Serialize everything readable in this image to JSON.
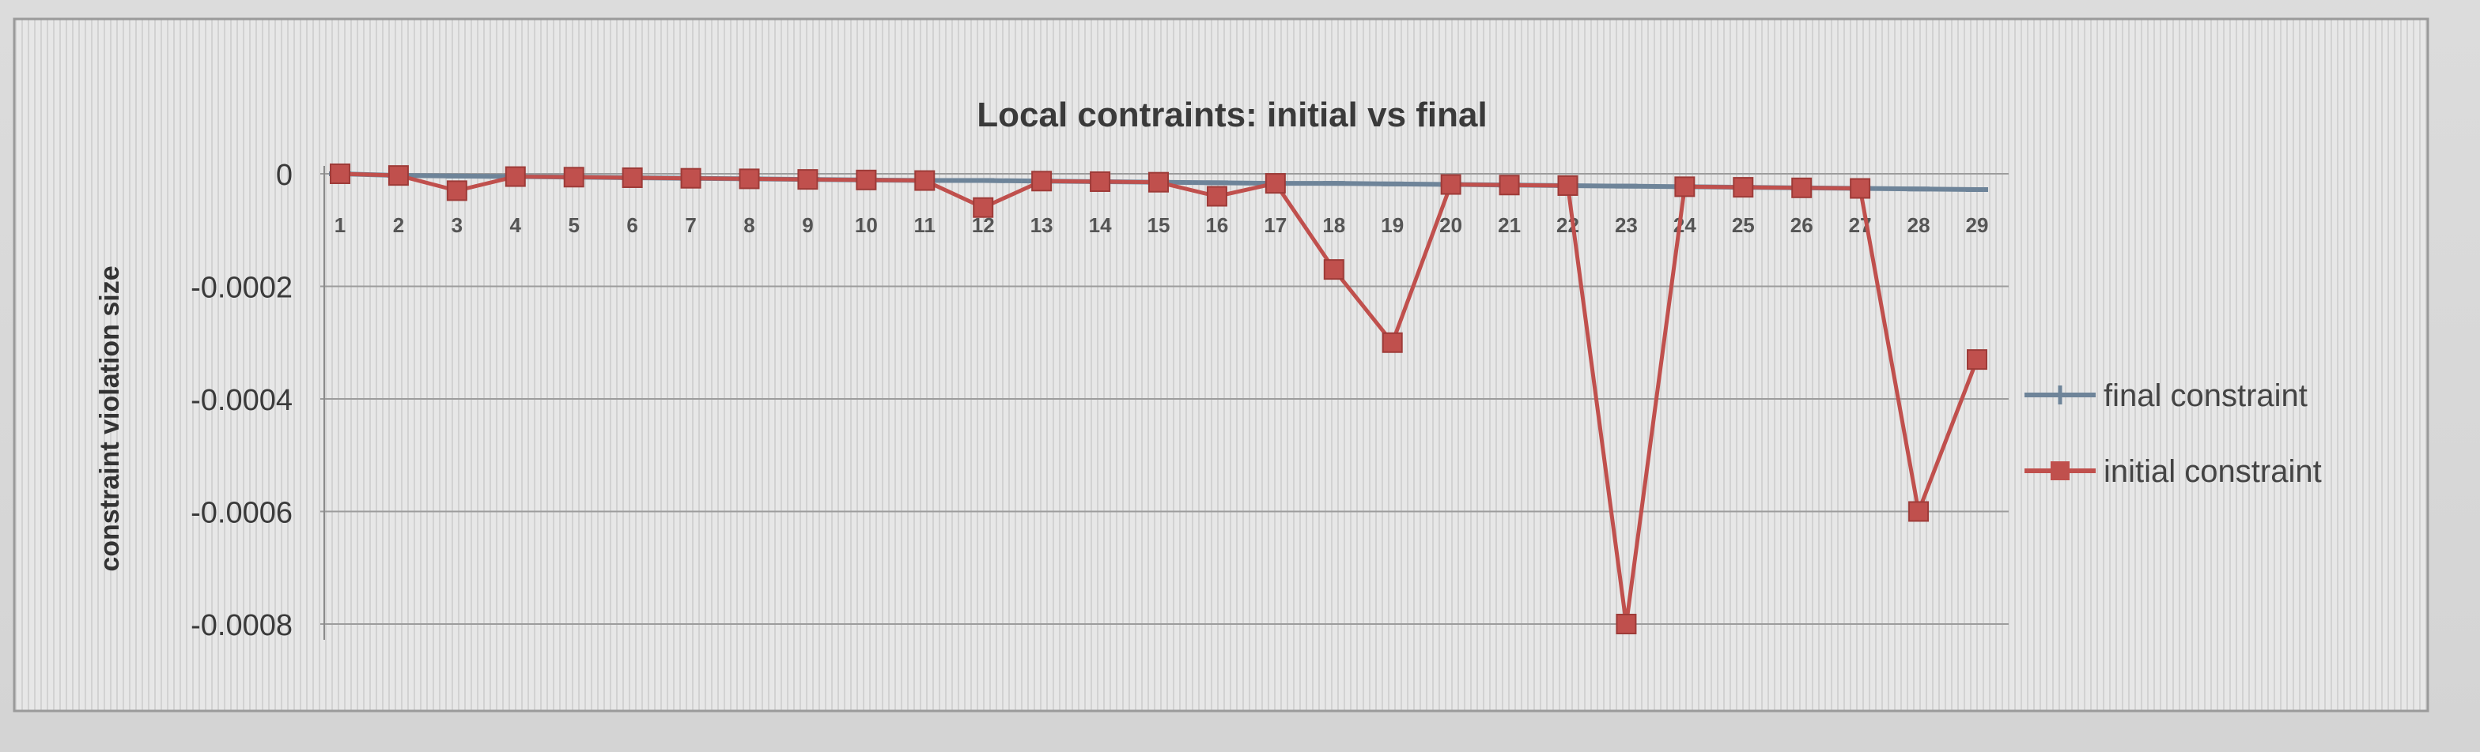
{
  "chart_data": {
    "type": "line",
    "title": "Local contraints: initial vs final",
    "xlabel": "",
    "ylabel": "constraint violation size",
    "categories": [
      "1",
      "2",
      "3",
      "4",
      "5",
      "6",
      "7",
      "8",
      "9",
      "10",
      "11",
      "12",
      "13",
      "14",
      "15",
      "16",
      "17",
      "18",
      "19",
      "20",
      "21",
      "22",
      "23",
      "24",
      "25",
      "26",
      "27",
      "28",
      "29"
    ],
    "ytick_labels": [
      "0",
      "-0.0002",
      "-0.0004",
      "-0.0006",
      "-0.0008"
    ],
    "ylim": [
      -0.0008,
      0
    ],
    "series": [
      {
        "name": "final constraint",
        "color": "#6e8499",
        "marker": "dash",
        "values": [
          0,
          -3e-06,
          -4e-06,
          -5e-06,
          -6e-06,
          -7e-06,
          -8e-06,
          -9e-06,
          -1e-05,
          -1.1e-05,
          -1.2e-05,
          -1.2e-05,
          -1.3e-05,
          -1.4e-05,
          -1.5e-05,
          -1.6e-05,
          -1.7e-05,
          -1.7e-05,
          -1.8e-05,
          -1.9e-05,
          -2e-05,
          -2.1e-05,
          -2.2e-05,
          -2.3e-05,
          -2.4e-05,
          -2.5e-05,
          -2.6e-05,
          -2.7e-05,
          -2.8e-05
        ]
      },
      {
        "name": "initial constraint",
        "color": "#c0504d",
        "marker": "square",
        "values": [
          0,
          -3e-06,
          -3e-05,
          -5e-06,
          -6e-06,
          -7e-06,
          -8e-06,
          -9e-06,
          -1e-05,
          -1.1e-05,
          -1.2e-05,
          -6e-05,
          -1.3e-05,
          -1.4e-05,
          -1.5e-05,
          -4e-05,
          -1.7e-05,
          -0.00017,
          -0.0003,
          -1.9e-05,
          -2e-05,
          -2.1e-05,
          -0.0008,
          -2.3e-05,
          -2.4e-05,
          -2.5e-05,
          -2.6e-05,
          -0.0006,
          -0.00033
        ]
      }
    ],
    "grid": true,
    "legend_position": "right"
  }
}
